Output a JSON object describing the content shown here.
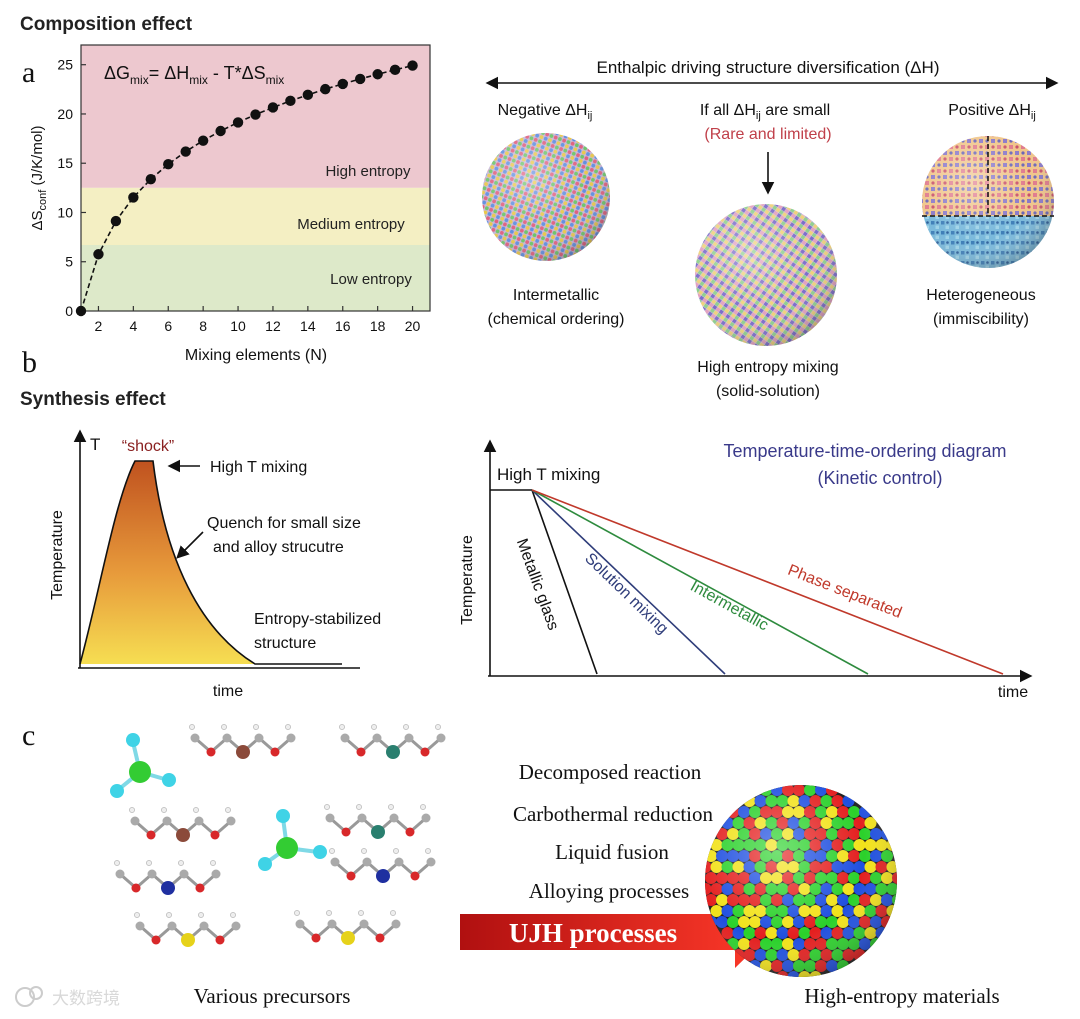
{
  "colors": {
    "high_band": "#edc8cf",
    "medium_band": "#f4efc3",
    "low_band": "#dde9c9",
    "red_text": "#c0404a",
    "navy_text": "#3a3a8a",
    "phase_sep": "#c0392b",
    "intermetallic_line": "#2e8b3e",
    "solution_line": "#2f3d7a",
    "arrow_red": "#d81e1e",
    "shock_top": "#c0521f",
    "shock_bottom": "#f6de52"
  },
  "section_a": {
    "letter": "a",
    "title": "Composition effect"
  },
  "section_b": {
    "letter": "b",
    "title": "Synthesis effect"
  },
  "section_c": {
    "letter": "c"
  },
  "chart_data": {
    "type": "line",
    "title": "",
    "xlabel": "Mixing elements (N)",
    "ylabel": "ΔS",
    "ylabel_sub": "conf",
    "ylabel_unit": " (J/K/mol)",
    "xlim": [
      1,
      21
    ],
    "ylim": [
      0,
      27
    ],
    "xticks": [
      2,
      4,
      6,
      8,
      10,
      12,
      14,
      16,
      18,
      20
    ],
    "yticks": [
      0,
      5,
      10,
      15,
      20,
      25
    ],
    "equation": {
      "dg": "ΔG",
      "dg_sub": "mix",
      "eq_h": "= ΔH",
      "h_sub": "mix",
      "mid": " - T*ΔS",
      "s_sub": "mix"
    },
    "bands": [
      {
        "label": "High entropy",
        "from": 12.5,
        "to": 27
      },
      {
        "label": "Medium entropy",
        "from": 6.7,
        "to": 12.5
      },
      {
        "label": "Low entropy",
        "from": 0,
        "to": 6.7
      }
    ],
    "x": [
      1,
      2,
      3,
      4,
      5,
      6,
      7,
      8,
      9,
      10,
      11,
      12,
      13,
      14,
      15,
      16,
      17,
      18,
      19,
      20
    ],
    "y": [
      0,
      5.76,
      9.13,
      11.53,
      13.38,
      14.9,
      16.18,
      17.29,
      18.27,
      19.14,
      19.94,
      20.66,
      21.33,
      21.94,
      22.52,
      23.05,
      23.56,
      24.03,
      24.48,
      24.91
    ]
  },
  "enthalpy": {
    "header": "Enthalpic driving structure diversification (ΔH)",
    "negative_label": "Negative ΔH",
    "ij": "ij",
    "small_label": "If all ΔH",
    "small_suffix": " are small",
    "rare": "(Rare and limited)",
    "positive_label": "Positive  ΔH",
    "intermetallic_1": "Intermetallic",
    "intermetallic_2": "(chemical ordering)",
    "hem_1": "High entropy mixing",
    "hem_2": "(solid-solution)",
    "het_1": "Heterogeneous",
    "het_2": "(immiscibility)"
  },
  "shock": {
    "t_label": "T",
    "shock_label": "“shock”",
    "high_t": "High T mixing",
    "quench_1": "Quench for small size",
    "quench_2": "and alloy strucutre",
    "entropy_1": "Entropy-stabilized",
    "entropy_2": "structure",
    "ylabel": "Temperature",
    "xlabel": "time"
  },
  "ttt": {
    "title_1": "Temperature-time-ordering diagram",
    "title_2": "(Kinetic control)",
    "high_t": "High T mixing",
    "ylabel": "Temperature",
    "xlabel": "time",
    "lines": [
      "Metallic glass",
      "Solution mixing",
      "Intermetallic",
      "Phase separated"
    ]
  },
  "process": {
    "steps": [
      "Decomposed reaction",
      "Carbothermal reduction",
      "Liquid fusion",
      "Alloying processes"
    ],
    "arrow_label": "UJH processes",
    "precursors": "Various precursors",
    "product": "High-entropy materials",
    "watermark": "大数跨境"
  }
}
